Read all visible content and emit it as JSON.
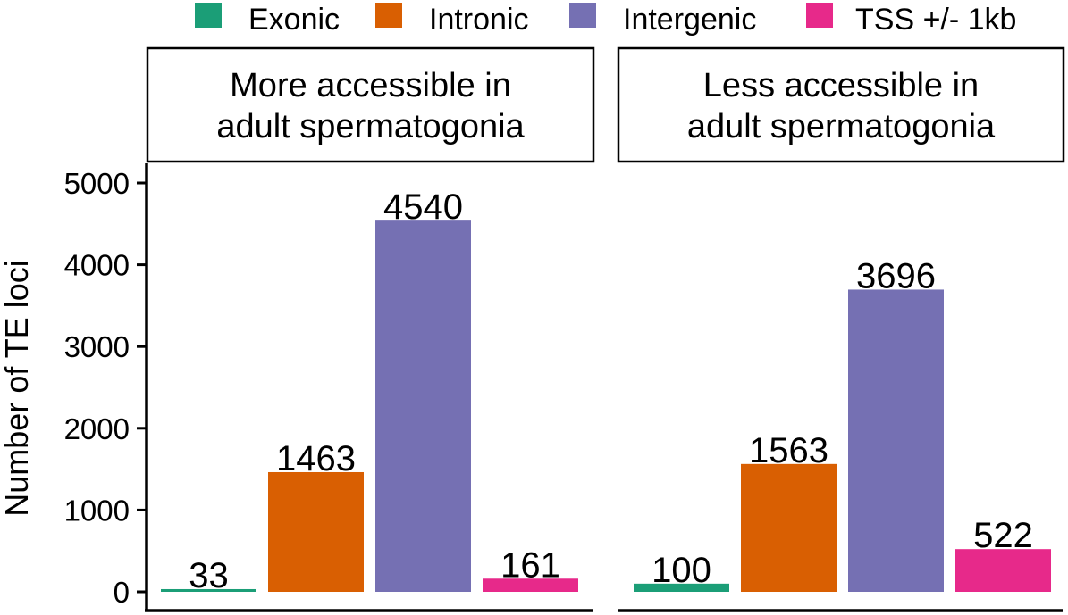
{
  "chart_data": {
    "type": "bar",
    "ylabel": "Number of TE loci",
    "ylim": [
      0,
      5200
    ],
    "yticks": [
      0,
      1000,
      2000,
      3000,
      4000,
      5000
    ],
    "grid": false,
    "legend_position": "top",
    "categories": [
      "Exonic",
      "Intronic",
      "Intergenic",
      "TSS +/- 1kb"
    ],
    "colors": [
      "#1B9E77",
      "#D95F02",
      "#7570B3",
      "#E7298A"
    ],
    "panels": [
      {
        "title_lines": [
          "More accessible in",
          "adult spermatogonia"
        ],
        "values": [
          33,
          1463,
          4540,
          161
        ],
        "value_labels": [
          "33",
          "1463",
          "4540",
          "161"
        ]
      },
      {
        "title_lines": [
          "Less accessible in",
          "adult spermatogonia"
        ],
        "values": [
          100,
          1563,
          3696,
          522
        ],
        "value_labels": [
          "100",
          "1563",
          "3696",
          "522"
        ]
      }
    ]
  }
}
